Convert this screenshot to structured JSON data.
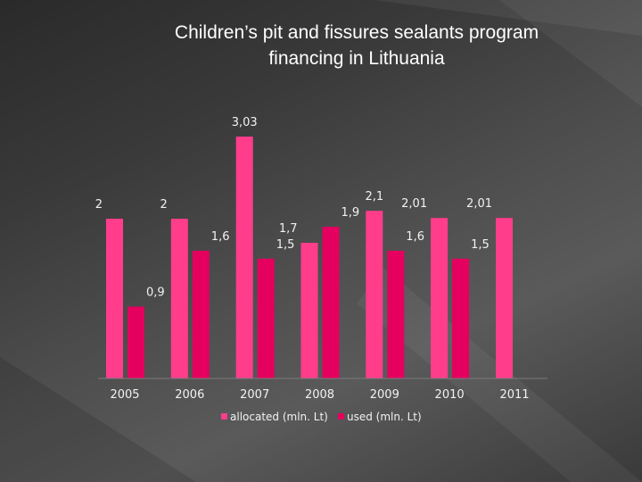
{
  "title_lines": [
    "Children’s pit and fissures sealants program",
    "financing in Lithuania"
  ],
  "chart_data": {
    "type": "bar",
    "title": "Children’s pit and fissures sealants program financing in Lithuania",
    "categories": [
      "2005",
      "2006",
      "2007",
      "2008",
      "2009",
      "2010",
      "2011"
    ],
    "series": [
      {
        "name": "allocated (mln. Lt)",
        "color": "#ff3d8b",
        "values": [
          2,
          2,
          3.03,
          1.7,
          2.1,
          2.01,
          2.01
        ],
        "labels": [
          "2",
          "2",
          "3,03",
          "1,7",
          "2,1",
          "2,01",
          "2,01"
        ]
      },
      {
        "name": "used (mln. Lt)",
        "color": "#e5005f",
        "values": [
          0.9,
          1.6,
          1.5,
          1.9,
          1.6,
          1.5,
          null
        ],
        "labels": [
          "0,9",
          "1,6",
          "1,5",
          "1,9",
          "1,6",
          "1,5",
          null
        ]
      }
    ],
    "ylim": [
      0,
      3.03
    ],
    "xlabel": "",
    "ylabel": "",
    "legend": "bottom",
    "grid": false
  }
}
